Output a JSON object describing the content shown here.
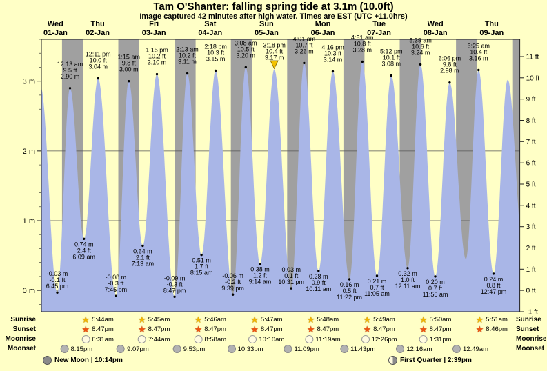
{
  "title": "Tam O'Shanter: falling  spring tide at 3.1m (10.0ft)",
  "subtitle": "Image captured 42 minutes after high water. Times are EST (UTC +11.0hrs)",
  "days": [
    {
      "weekday": "Wed",
      "date": "01-Jan"
    },
    {
      "weekday": "Thu",
      "date": "02-Jan"
    },
    {
      "weekday": "Fri",
      "date": "03-Jan"
    },
    {
      "weekday": "Sat",
      "date": "04-Jan"
    },
    {
      "weekday": "Sun",
      "date": "05-Jan"
    },
    {
      "weekday": "Mon",
      "date": "06-Jan"
    },
    {
      "weekday": "Tue",
      "date": "07-Jan"
    },
    {
      "weekday": "Wed",
      "date": "08-Jan"
    },
    {
      "weekday": "Thu",
      "date": "09-Jan"
    }
  ],
  "axis": {
    "left_unit": "m",
    "left_ticks": [
      {
        "m": 0,
        "label": "0 m"
      },
      {
        "m": 1,
        "label": "1 m"
      },
      {
        "m": 2,
        "label": "2 m"
      },
      {
        "m": 3,
        "label": "3 m"
      }
    ],
    "right_unit": "ft",
    "right_ticks": [
      {
        "ft": -1,
        "label": "-1 ft"
      },
      {
        "ft": 0,
        "label": "0 ft"
      },
      {
        "ft": 1,
        "label": "1 ft"
      },
      {
        "ft": 2,
        "label": "2 ft"
      },
      {
        "ft": 3,
        "label": "3 ft"
      },
      {
        "ft": 4,
        "label": "4 ft"
      },
      {
        "ft": 5,
        "label": "5 ft"
      },
      {
        "ft": 6,
        "label": "6 ft"
      },
      {
        "ft": 7,
        "label": "7 ft"
      },
      {
        "ft": 8,
        "label": "8 ft"
      },
      {
        "ft": 9,
        "label": "9 ft"
      },
      {
        "ft": 10,
        "label": "10 ft"
      },
      {
        "ft": 11,
        "label": "11 ft"
      }
    ]
  },
  "colors": {
    "background": "#ffffc6",
    "night_band": "#a0a0a0",
    "tide_fill": "#a9b6e7",
    "day_label": "#e00000",
    "marker_fill": "#f2c200"
  },
  "chart_data": {
    "type": "area",
    "series_name": "tide height (m)",
    "x_range_hours": [
      12,
      216
    ],
    "y_range_m": [
      -0.305,
      3.6
    ],
    "night_span": {
      "sunset_hour": 20.78,
      "sunrise_hour": 5.75
    },
    "extremes": [
      {
        "day": 0,
        "time": "11:40 am",
        "m": 2.92,
        "type": "high",
        "hidden": true
      },
      {
        "day": 0,
        "time": "6:45 pm",
        "m": -0.03,
        "type": "low",
        "m_label": "-0.03 m",
        "ft_label": "-0.1 ft"
      },
      {
        "day": 1,
        "time": "12:13 am",
        "m": 2.9,
        "type": "high",
        "ft_label": "9.5 ft",
        "m_label": "2.90 m"
      },
      {
        "day": 1,
        "time": "6:09 am",
        "m": 0.74,
        "type": "low",
        "m_label": "0.74 m",
        "ft_label": "2.4 ft"
      },
      {
        "day": 1,
        "time": "12:11 pm",
        "m": 3.04,
        "type": "high",
        "ft_label": "10.0 ft",
        "m_label": "3.04 m"
      },
      {
        "day": 1,
        "time": "7:45 pm",
        "m": -0.08,
        "type": "low",
        "m_label": "-0.08 m",
        "ft_label": "-0.3 ft"
      },
      {
        "day": 2,
        "time": "1:15 am",
        "m": 3.0,
        "type": "high",
        "ft_label": "9.8 ft",
        "m_label": "3.00 m"
      },
      {
        "day": 2,
        "time": "7:13 am",
        "m": 0.64,
        "type": "low",
        "m_label": "0.64 m",
        "ft_label": "2.1 ft"
      },
      {
        "day": 2,
        "time": "1:15 pm",
        "m": 3.1,
        "type": "high",
        "ft_label": "10.2 ft",
        "m_label": "3.10 m"
      },
      {
        "day": 2,
        "time": "8:47 pm",
        "m": -0.09,
        "type": "low",
        "m_label": "-0.09 m",
        "ft_label": "-0.3 ft"
      },
      {
        "day": 3,
        "time": "2:13 am",
        "m": 3.11,
        "type": "high",
        "ft_label": "10.2 ft",
        "m_label": "3.11 m"
      },
      {
        "day": 3,
        "time": "8:15 am",
        "m": 0.51,
        "type": "low",
        "m_label": "0.51 m",
        "ft_label": "1.7 ft"
      },
      {
        "day": 3,
        "time": "2:18 pm",
        "m": 3.15,
        "type": "high",
        "ft_label": "10.3 ft",
        "m_label": "3.15 m"
      },
      {
        "day": 3,
        "time": "9:39 pm",
        "m": -0.06,
        "type": "low",
        "m_label": "-0.06 m",
        "ft_label": "-0.2 ft"
      },
      {
        "day": 4,
        "time": "3:08 am",
        "m": 3.2,
        "type": "high",
        "ft_label": "10.5 ft",
        "m_label": "3.20 m"
      },
      {
        "day": 4,
        "time": "9:14 am",
        "m": 0.38,
        "type": "low",
        "m_label": "0.38 m",
        "ft_label": "1.2 ft"
      },
      {
        "day": 4,
        "time": "3:18 pm",
        "m": 3.17,
        "type": "high",
        "ft_label": "10.4 ft",
        "m_label": "3.17 m",
        "marker": true
      },
      {
        "day": 4,
        "time": "10:31 pm",
        "m": 0.03,
        "type": "low",
        "m_label": "0.03 m",
        "ft_label": "0.1 ft"
      },
      {
        "day": 5,
        "time": "4:01 am",
        "m": 3.26,
        "type": "high",
        "ft_label": "10.7 ft",
        "m_label": "3.26 m"
      },
      {
        "day": 5,
        "time": "10:11 am",
        "m": 0.28,
        "type": "low",
        "m_label": "0.28 m",
        "ft_label": "0.9 ft"
      },
      {
        "day": 5,
        "time": "4:16 pm",
        "m": 3.14,
        "type": "high",
        "ft_label": "10.3 ft",
        "m_label": "3.14 m"
      },
      {
        "day": 5,
        "time": "11:22 pm",
        "m": 0.16,
        "type": "low",
        "m_label": "0.16 m",
        "ft_label": "0.5 ft"
      },
      {
        "day": 6,
        "time": "4:51 am",
        "m": 3.28,
        "type": "high",
        "ft_label": "10.8 ft",
        "m_label": "3.28 m"
      },
      {
        "day": 6,
        "time": "11:05 am",
        "m": 0.21,
        "type": "low",
        "m_label": "0.21 m",
        "ft_label": "0.7 ft"
      },
      {
        "day": 6,
        "time": "5:12 pm",
        "m": 3.08,
        "type": "high",
        "ft_label": "10.1 ft",
        "m_label": "3.08 m"
      },
      {
        "day": 7,
        "time": "12:11 am",
        "m": 0.32,
        "type": "low",
        "m_label": "0.32 m",
        "ft_label": "1.0 ft"
      },
      {
        "day": 7,
        "time": "5:39 am",
        "m": 3.24,
        "type": "high",
        "ft_label": "10.6 ft",
        "m_label": "3.24 m"
      },
      {
        "day": 7,
        "time": "11:56 am",
        "m": 0.2,
        "type": "low",
        "m_label": "0.20 m",
        "ft_label": "0.7 ft"
      },
      {
        "day": 7,
        "time": "6:06 pm",
        "m": 2.98,
        "type": "high",
        "ft_label": "9.8 ft",
        "m_label": "2.98 m"
      },
      {
        "day": 8,
        "time": "1:00 am",
        "m": 0.45,
        "type": "low",
        "hidden": true
      },
      {
        "day": 8,
        "time": "6:25 am",
        "m": 3.16,
        "type": "high",
        "ft_label": "10.4 ft",
        "m_label": "3.16 m"
      },
      {
        "day": 8,
        "time": "12:47 pm",
        "m": 0.24,
        "type": "low",
        "m_label": "0.24 m",
        "ft_label": "0.8 ft"
      },
      {
        "day": 8,
        "time": "6:50 pm",
        "m": 3.02,
        "type": "high",
        "hidden": true
      },
      {
        "day": 9,
        "time": "1:50 am",
        "m": 0.45,
        "type": "low",
        "hidden": true
      }
    ]
  },
  "astro": {
    "rows": [
      {
        "label": "Sunrise",
        "icon": "sunrise-star",
        "start_col": 1,
        "times": [
          "5:44am",
          "5:45am",
          "5:46am",
          "5:47am",
          "5:48am",
          "5:49am",
          "5:50am",
          "5:51am"
        ]
      },
      {
        "label": "Sunset",
        "icon": "sunset-star",
        "start_col": 1,
        "times": [
          "8:47pm",
          "8:47pm",
          "8:47pm",
          "8:47pm",
          "8:47pm",
          "8:47pm",
          "8:47pm",
          "8:46pm"
        ]
      },
      {
        "label": "Moonrise",
        "icon": "moonrise-circle",
        "start_col": 1,
        "times": [
          "6:31am",
          "7:44am",
          "8:58am",
          "10:10am",
          "11:19am",
          "12:26pm",
          "1:31pm"
        ]
      },
      {
        "label": "Moonset",
        "icon": "moonset-circle",
        "start_col": 0,
        "boundary": true,
        "times": [
          "8:15pm",
          "9:07pm",
          "9:53pm",
          "10:33pm",
          "11:09pm",
          "11:43pm",
          "12:16am",
          "12:49am"
        ]
      }
    ],
    "events": [
      {
        "name": "New Moon",
        "time": "10:14pm",
        "icon": "new-moon"
      },
      {
        "name": "First Quarter",
        "time": "2:39pm",
        "icon": "first-quarter"
      }
    ]
  }
}
